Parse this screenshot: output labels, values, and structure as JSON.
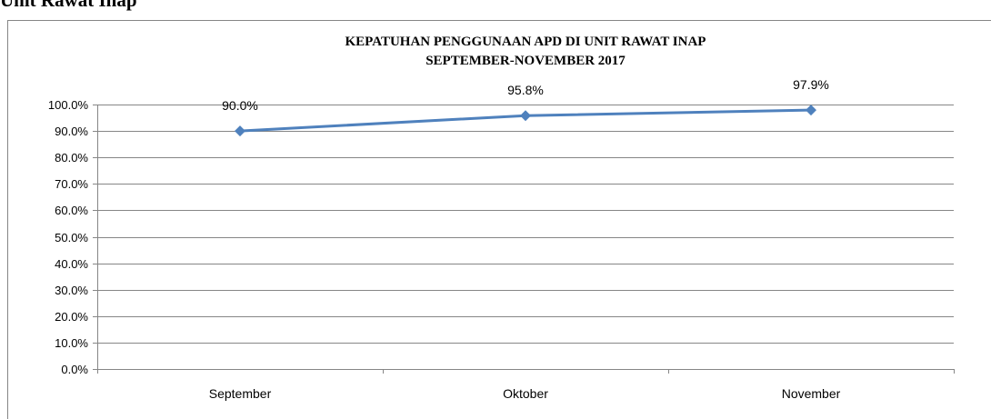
{
  "heading": "Unit Rawat Inap",
  "chart_data": {
    "type": "line",
    "title": "KEPATUHAN PENGGUNAAN APD DI UNIT RAWAT INAP",
    "subtitle": "SEPTEMBER-NOVEMBER  2017",
    "categories": [
      "September",
      "Oktober",
      "November"
    ],
    "values": [
      90.0,
      95.8,
      97.9
    ],
    "value_labels": [
      "90.0%",
      "95.8%",
      "97.9%"
    ],
    "color": "#4f81bd",
    "ylim": [
      0,
      100
    ],
    "yticks": [
      {
        "value": 0,
        "label": "0.0%"
      },
      {
        "value": 10,
        "label": "10.0%"
      },
      {
        "value": 20,
        "label": "20.0%"
      },
      {
        "value": 30,
        "label": "30.0%"
      },
      {
        "value": 40,
        "label": "40.0%"
      },
      {
        "value": 50,
        "label": "50.0%"
      },
      {
        "value": 60,
        "label": "60.0%"
      },
      {
        "value": 70,
        "label": "70.0%"
      },
      {
        "value": 80,
        "label": "80.0%"
      },
      {
        "value": 90,
        "label": "90.0%"
      },
      {
        "value": 100,
        "label": "100.0%"
      }
    ],
    "grid": true
  }
}
